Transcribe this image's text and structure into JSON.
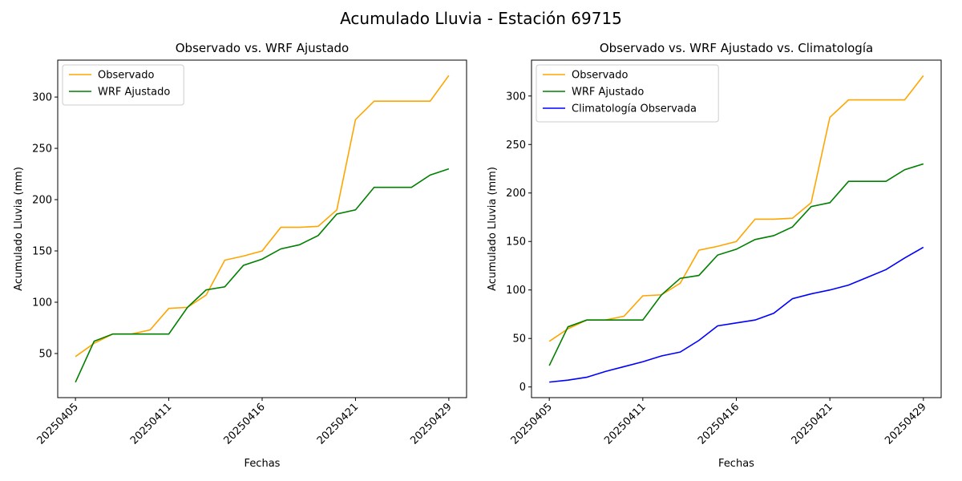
{
  "title": "Acumulado Lluvia - Estación 69715",
  "chart_data": [
    {
      "type": "line",
      "title": "Observado vs. WRF Ajustado",
      "x_label": "Fechas",
      "y_label": "Acumulado Lluvia (mm)",
      "categories": [
        "20250405",
        null,
        null,
        null,
        null,
        "20250411",
        null,
        null,
        null,
        null,
        "20250416",
        null,
        null,
        null,
        null,
        "20250421",
        null,
        null,
        null,
        null,
        "20250429"
      ],
      "series": [
        {
          "name": "Observado",
          "color": "#ffa500",
          "values": [
            47,
            60,
            69,
            69,
            73,
            94,
            95,
            107,
            141,
            145,
            150,
            173,
            173,
            174,
            190,
            278,
            296,
            296,
            296,
            296,
            321
          ]
        },
        {
          "name": "WRF Ajustado",
          "color": "#008000",
          "values": [
            22,
            62,
            69,
            69,
            69,
            69,
            95,
            112,
            115,
            136,
            142,
            152,
            156,
            165,
            186,
            190,
            212,
            212,
            212,
            224,
            230
          ]
        }
      ],
      "ylim": [
        7,
        336
      ],
      "yticks": [
        50,
        100,
        150,
        200,
        250,
        300
      ],
      "legend": "upper-left"
    },
    {
      "type": "line",
      "title": "Observado vs. WRF Ajustado vs. Climatología",
      "x_label": "Fechas",
      "y_label": "Acumulado Lluvia (mm)",
      "categories": [
        "20250405",
        null,
        null,
        null,
        null,
        "20250411",
        null,
        null,
        null,
        null,
        "20250416",
        null,
        null,
        null,
        null,
        "20250421",
        null,
        null,
        null,
        null,
        "20250429"
      ],
      "series": [
        {
          "name": "Observado",
          "color": "#ffa500",
          "values": [
            47,
            60,
            69,
            69,
            73,
            94,
            95,
            107,
            141,
            145,
            150,
            173,
            173,
            174,
            190,
            278,
            296,
            296,
            296,
            296,
            321
          ]
        },
        {
          "name": "WRF Ajustado",
          "color": "#008000",
          "values": [
            22,
            62,
            69,
            69,
            69,
            69,
            95,
            112,
            115,
            136,
            142,
            152,
            156,
            165,
            186,
            190,
            212,
            212,
            212,
            224,
            230
          ]
        },
        {
          "name": "Climatología Observada",
          "color": "#0000ff",
          "values": [
            5,
            7,
            10,
            16,
            21,
            26,
            32,
            36,
            48,
            63,
            66,
            69,
            76,
            91,
            96,
            100,
            105,
            113,
            121,
            133,
            144
          ]
        }
      ],
      "ylim": [
        -11,
        337
      ],
      "yticks": [
        0,
        50,
        100,
        150,
        200,
        250,
        300
      ],
      "legend": "upper-left"
    }
  ]
}
